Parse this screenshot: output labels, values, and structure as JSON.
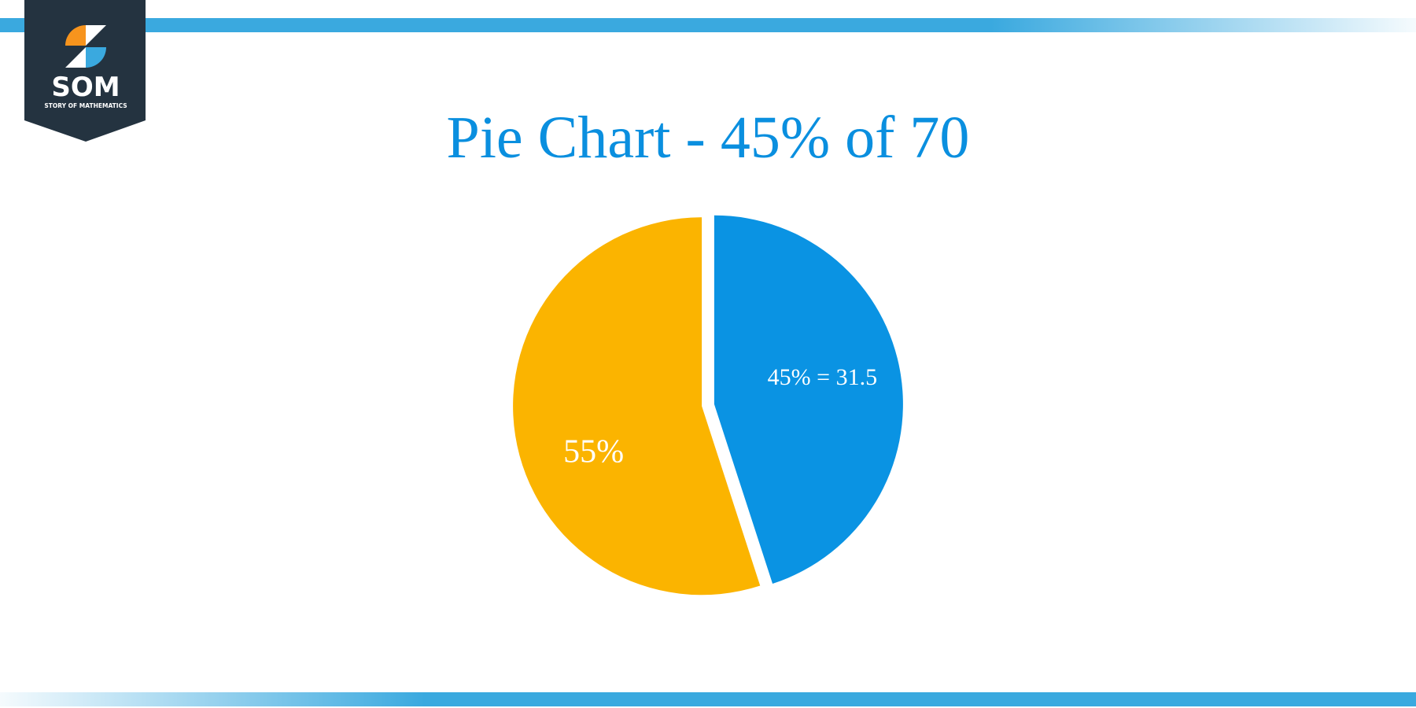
{
  "logo": {
    "name": "SOM",
    "tagline": "STORY OF MATHEMATICS"
  },
  "chart_data": {
    "type": "pie",
    "title": "Pie Chart - 45% of 70",
    "categories": [
      null,
      null
    ],
    "values": [
      45,
      55
    ],
    "value_labels": [
      "45% = 31.5",
      "55%"
    ],
    "colors": [
      "#0a93e3",
      "#fbb400"
    ]
  }
}
